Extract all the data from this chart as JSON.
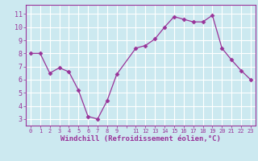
{
  "x": [
    0,
    1,
    2,
    3,
    4,
    5,
    6,
    7,
    8,
    9,
    11,
    12,
    13,
    14,
    15,
    16,
    17,
    18,
    19,
    20,
    21,
    22,
    23
  ],
  "y": [
    8.0,
    8.0,
    6.5,
    6.9,
    6.6,
    5.2,
    3.2,
    3.0,
    4.4,
    6.4,
    8.4,
    8.6,
    9.1,
    10.0,
    10.8,
    10.6,
    10.4,
    10.4,
    10.9,
    8.4,
    7.5,
    6.7,
    6.0
  ],
  "line_color": "#993399",
  "marker": "D",
  "marker_size": 2.5,
  "xlabel": "Windchill (Refroidissement éolien,°C)",
  "xlabel_fontsize": 6.5,
  "bg_color": "#cce9f0",
  "grid_color": "#ffffff",
  "tick_color": "#993399",
  "label_color": "#993399",
  "yticks": [
    3,
    4,
    5,
    6,
    7,
    8,
    9,
    10,
    11
  ],
  "ylim": [
    2.5,
    11.7
  ],
  "xlim": [
    -0.5,
    23.5
  ]
}
